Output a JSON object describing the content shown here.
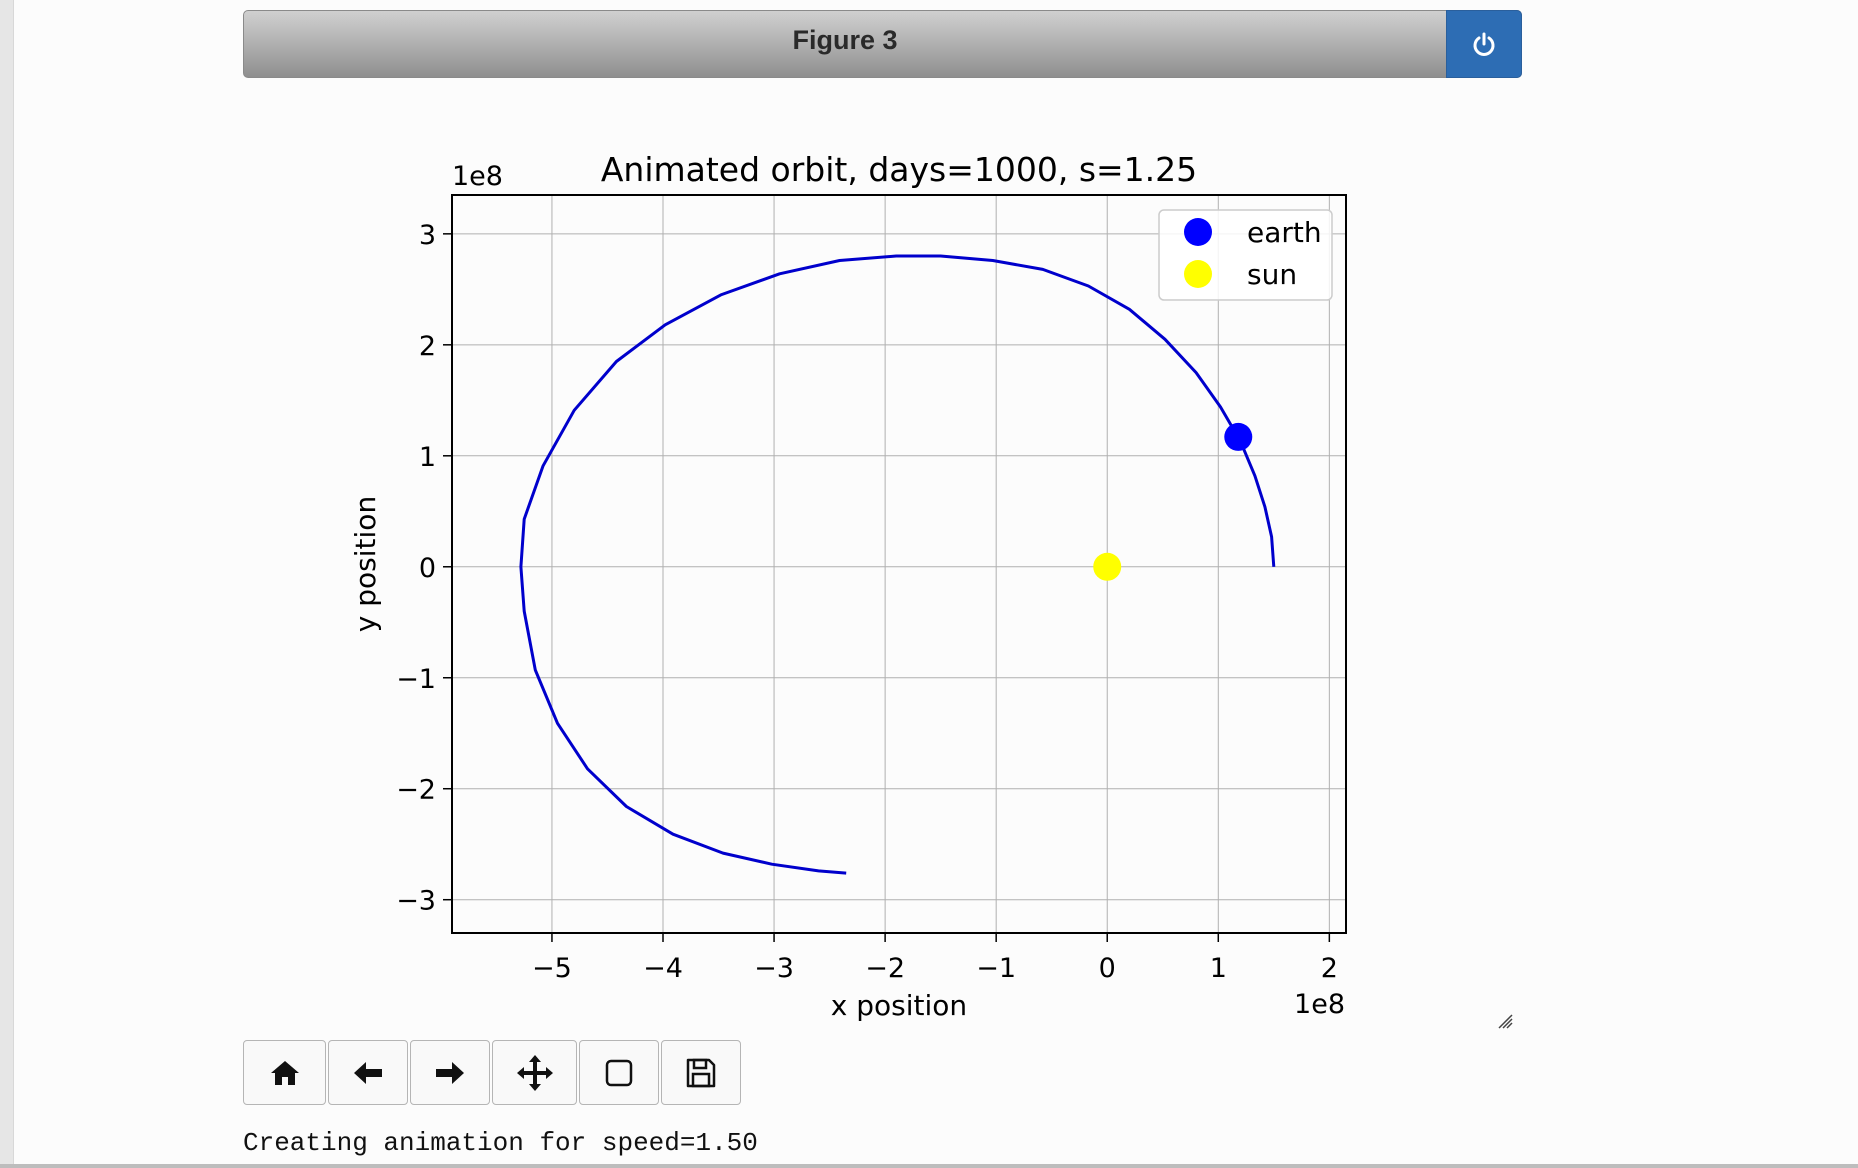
{
  "window": {
    "title": "Figure 3",
    "power_icon": "power-icon"
  },
  "toolbar": {
    "buttons": [
      {
        "name": "home-button",
        "icon": "home-icon"
      },
      {
        "name": "back-button",
        "icon": "arrow-left-icon"
      },
      {
        "name": "forward-button",
        "icon": "arrow-right-icon"
      },
      {
        "name": "pan-button",
        "icon": "move-icon"
      },
      {
        "name": "zoom-button",
        "icon": "square-icon"
      },
      {
        "name": "save-button",
        "icon": "floppy-disk-icon"
      }
    ]
  },
  "status_text": "Creating animation for speed=1.50",
  "colors": {
    "accent": "#2d6db4",
    "earth": "#0000ff",
    "sun": "#ffff00",
    "orbit": "#0000cc"
  },
  "chart_data": {
    "type": "line",
    "title": "Animated orbit, days=1000, s=1.25",
    "xlabel": "x position",
    "ylabel": "y position",
    "x_offset_text": "1e8",
    "y_offset_text": "1e8",
    "xlim": [
      -5.9,
      2.15
    ],
    "ylim": [
      -3.3,
      3.35
    ],
    "xticks": [
      -5,
      -4,
      -3,
      -2,
      -1,
      0,
      1,
      2
    ],
    "yticks": [
      -3,
      -2,
      -1,
      0,
      1,
      2,
      3
    ],
    "xtick_labels": [
      "−5",
      "−4",
      "−3",
      "−2",
      "−1",
      "0",
      "1",
      "2"
    ],
    "ytick_labels": [
      "−3",
      "−2",
      "−1",
      "0",
      "1",
      "2",
      "3"
    ],
    "grid": true,
    "legend_position": "top-right",
    "series": [
      {
        "kind": "line",
        "color": "#0000cc",
        "x": [
          1.5,
          1.48,
          1.42,
          1.33,
          1.2,
          1.02,
          0.8,
          0.52,
          0.2,
          -0.17,
          -0.58,
          -1.03,
          -1.5,
          -1.9,
          -2.41,
          -2.95,
          -3.48,
          -3.98,
          -4.42,
          -4.8,
          -5.08,
          -5.25,
          -5.28,
          -5.25,
          -5.15,
          -4.95,
          -4.68,
          -4.33,
          -3.91,
          -3.46,
          -3.02,
          -2.6,
          -2.35
        ],
        "y": [
          0.0,
          0.27,
          0.54,
          0.82,
          1.13,
          1.44,
          1.75,
          2.05,
          2.32,
          2.53,
          2.68,
          2.76,
          2.8,
          2.8,
          2.76,
          2.64,
          2.45,
          2.18,
          1.85,
          1.41,
          0.91,
          0.43,
          0.0,
          -0.4,
          -0.93,
          -1.41,
          -1.82,
          -2.16,
          -2.41,
          -2.58,
          -2.68,
          -2.74,
          -2.76
        ]
      },
      {
        "kind": "point",
        "name": "earth",
        "color": "#0000ff",
        "x": [
          1.18
        ],
        "y": [
          1.17
        ]
      },
      {
        "kind": "point",
        "name": "sun",
        "color": "#ffff00",
        "x": [
          0.0
        ],
        "y": [
          0.0
        ]
      }
    ]
  }
}
